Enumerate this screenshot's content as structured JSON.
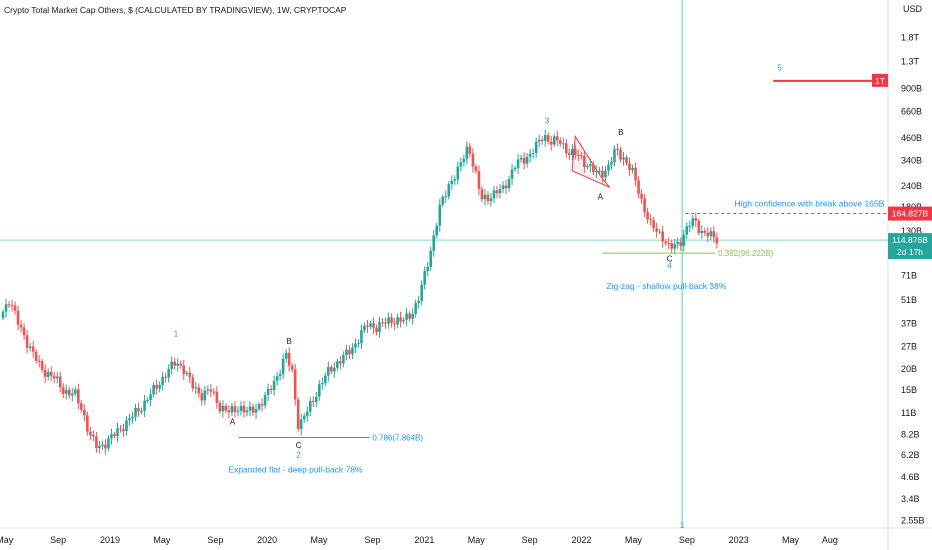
{
  "chart_data": {
    "type": "candlestick",
    "title": "Crypto Total Market Cap Others, $ (CALCULATED BY TRADINGVIEW), 1W, CRYPTOCAP",
    "currency_label": "USD",
    "scale": "log",
    "ylim": [
      2.3,
      3000
    ],
    "xlim": [
      2018.3,
      2023.95
    ],
    "grid": false,
    "y_ticks": [
      {
        "label": "1.8T",
        "value": 1800
      },
      {
        "label": "1.3T",
        "value": 1300
      },
      {
        "label": "900B",
        "value": 900
      },
      {
        "label": "660B",
        "value": 660
      },
      {
        "label": "460B",
        "value": 460
      },
      {
        "label": "340B",
        "value": 340
      },
      {
        "label": "240B",
        "value": 240
      },
      {
        "label": "180B",
        "value": 180
      },
      {
        "label": "130B",
        "value": 130
      },
      {
        "label": "71B",
        "value": 71
      },
      {
        "label": "51B",
        "value": 51
      },
      {
        "label": "37B",
        "value": 37
      },
      {
        "label": "27B",
        "value": 27
      },
      {
        "label": "20B",
        "value": 20
      },
      {
        "label": "15B",
        "value": 15
      },
      {
        "label": "11B",
        "value": 11
      },
      {
        "label": "8.2B",
        "value": 8.2
      },
      {
        "label": "6.2B",
        "value": 6.2
      },
      {
        "label": "4.6B",
        "value": 4.6
      },
      {
        "label": "3.4B",
        "value": 3.4
      },
      {
        "label": "2.55B",
        "value": 2.55
      }
    ],
    "x_ticks": [
      {
        "label": "May",
        "value": 2018.33
      },
      {
        "label": "Sep",
        "value": 2018.67
      },
      {
        "label": "2019",
        "value": 2019.0
      },
      {
        "label": "May",
        "value": 2019.33
      },
      {
        "label": "Sep",
        "value": 2019.67
      },
      {
        "label": "2020",
        "value": 2020.0
      },
      {
        "label": "May",
        "value": 2020.33
      },
      {
        "label": "Sep",
        "value": 2020.67
      },
      {
        "label": "2021",
        "value": 2021.0
      },
      {
        "label": "May",
        "value": 2021.33
      },
      {
        "label": "Sep",
        "value": 2021.67
      },
      {
        "label": "2022",
        "value": 2022.0
      },
      {
        "label": "May",
        "value": 2022.33
      },
      {
        "label": "Sep",
        "value": 2022.67
      },
      {
        "label": "2023",
        "value": 2023.0
      },
      {
        "label": "May",
        "value": 2023.33
      },
      {
        "label": "Aug",
        "value": 2023.58
      }
    ],
    "price_path": [
      [
        2018.3,
        40
      ],
      [
        2018.36,
        52
      ],
      [
        2018.42,
        36
      ],
      [
        2018.48,
        28
      ],
      [
        2018.56,
        20
      ],
      [
        2018.64,
        18
      ],
      [
        2018.7,
        15
      ],
      [
        2018.78,
        14
      ],
      [
        2018.83,
        11
      ],
      [
        2018.87,
        8.2
      ],
      [
        2018.92,
        6.8
      ],
      [
        2018.96,
        7.2
      ],
      [
        2019.03,
        8.2
      ],
      [
        2019.12,
        10
      ],
      [
        2019.2,
        12
      ],
      [
        2019.28,
        15
      ],
      [
        2019.36,
        19
      ],
      [
        2019.42,
        22
      ],
      [
        2019.47,
        20
      ],
      [
        2019.52,
        16
      ],
      [
        2019.58,
        14
      ],
      [
        2019.64,
        15
      ],
      [
        2019.7,
        12
      ],
      [
        2019.76,
        11
      ],
      [
        2019.82,
        12
      ],
      [
        2019.88,
        11
      ],
      [
        2019.94,
        12
      ],
      [
        2020.0,
        14
      ],
      [
        2020.06,
        18
      ],
      [
        2020.12,
        24
      ],
      [
        2020.16,
        19
      ],
      [
        2020.2,
        9
      ],
      [
        2020.25,
        11
      ],
      [
        2020.32,
        15
      ],
      [
        2020.4,
        20
      ],
      [
        2020.48,
        23
      ],
      [
        2020.56,
        28
      ],
      [
        2020.64,
        37
      ],
      [
        2020.7,
        35
      ],
      [
        2020.78,
        39
      ],
      [
        2020.86,
        38
      ],
      [
        2020.92,
        43
      ],
      [
        2020.96,
        50
      ],
      [
        2021.0,
        70
      ],
      [
        2021.05,
        110
      ],
      [
        2021.1,
        180
      ],
      [
        2021.16,
        250
      ],
      [
        2021.22,
        300
      ],
      [
        2021.28,
        420
      ],
      [
        2021.32,
        300
      ],
      [
        2021.36,
        200
      ],
      [
        2021.42,
        210
      ],
      [
        2021.5,
        230
      ],
      [
        2021.58,
        320
      ],
      [
        2021.66,
        360
      ],
      [
        2021.72,
        420
      ],
      [
        2021.76,
        480
      ],
      [
        2021.8,
        440
      ],
      [
        2021.86,
        440
      ],
      [
        2021.92,
        380
      ],
      [
        2021.98,
        360
      ],
      [
        2022.04,
        320
      ],
      [
        2022.1,
        280
      ],
      [
        2022.16,
        300
      ],
      [
        2022.22,
        390
      ],
      [
        2022.28,
        340
      ],
      [
        2022.33,
        280
      ],
      [
        2022.38,
        200
      ],
      [
        2022.44,
        140
      ],
      [
        2022.52,
        120
      ],
      [
        2022.56,
        102
      ],
      [
        2022.62,
        110
      ],
      [
        2022.68,
        140
      ],
      [
        2022.72,
        150
      ],
      [
        2022.76,
        130
      ],
      [
        2022.8,
        125
      ],
      [
        2022.84,
        118
      ],
      [
        2022.88,
        115
      ]
    ],
    "wave_labels": [
      {
        "text": "1",
        "x": 2019.42,
        "y": 31,
        "color": "#2196f3"
      },
      {
        "text": "A",
        "x": 2019.78,
        "y": 9.4,
        "color": "#131722"
      },
      {
        "text": "B",
        "x": 2020.14,
        "y": 28,
        "color": "#131722"
      },
      {
        "text": "C",
        "x": 2020.2,
        "y": 6.8,
        "color": "#131722"
      },
      {
        "text": "2",
        "x": 2020.2,
        "y": 6.0,
        "color": "#2196f3"
      },
      {
        "text": "3",
        "x": 2021.78,
        "y": 560,
        "color": "#2196f3"
      },
      {
        "text": "A",
        "x": 2022.12,
        "y": 200,
        "color": "#131722"
      },
      {
        "text": "B",
        "x": 2022.25,
        "y": 480,
        "color": "#131722"
      },
      {
        "text": "C",
        "x": 2022.56,
        "y": 86,
        "color": "#131722"
      },
      {
        "text": "4",
        "x": 2022.56,
        "y": 78,
        "color": "#2196f3"
      },
      {
        "text": "5",
        "x": 2023.26,
        "y": 1150,
        "color": "#2196f3"
      },
      {
        "text": "1",
        "x": 2022.64,
        "y": 2.3,
        "color": "#2196f3"
      }
    ],
    "fib_lines": [
      {
        "label": "0.786(7.864B)",
        "value": 7.864,
        "x_start": 2019.82,
        "x_end": 2020.65,
        "color": "#2196f3"
      },
      {
        "label": "0.382(96.222B)",
        "value": 96.222,
        "x_start": 2022.13,
        "x_end": 2022.85,
        "color": "#8bc34a"
      }
    ],
    "annotations": [
      {
        "text": "Expanded flat - deep pull-back 78%",
        "x": 2020.18,
        "y": 4.9,
        "color": "#2196f3"
      },
      {
        "text": "Zig-zag - shallow pull-back 38%",
        "x": 2022.54,
        "y": 59,
        "color": "#2196f3"
      },
      {
        "text": "High confidence with break above 165B",
        "x": 2023.45,
        "y": 182,
        "color": "#2196f3"
      }
    ],
    "target_level": {
      "label": "1T",
      "value": 1000,
      "x_start": 2023.22,
      "x_end": 2023.95,
      "color": "#f23645"
    },
    "breakout_level": {
      "label": "164.827B",
      "value": 164.827,
      "x_start": 2022.66,
      "color": "#f23645"
    },
    "current_price": {
      "label": "114.876B",
      "countdown": "2d 17h",
      "value": 114.876,
      "color": "#26a69a"
    },
    "vertical_marker_x": 2022.64,
    "wedge": [
      [
        2021.96,
        470
      ],
      [
        2022.12,
        275
      ],
      [
        2022.18,
        235
      ],
      [
        2021.94,
        295
      ]
    ]
  }
}
